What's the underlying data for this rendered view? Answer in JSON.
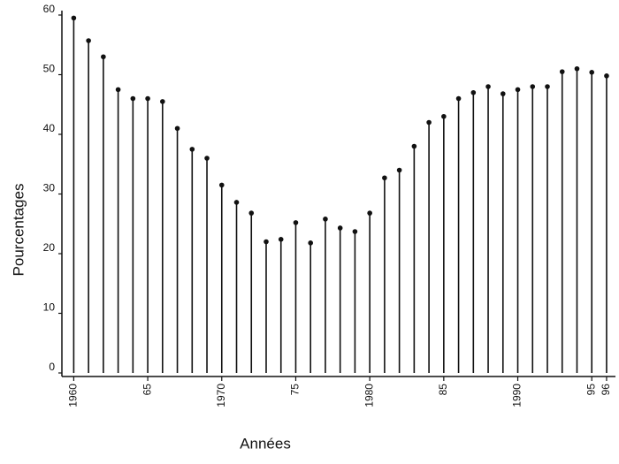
{
  "chart_data": {
    "type": "stem",
    "x_label": "Années",
    "y_label": "Pourcentages",
    "x": [
      1960,
      1961,
      1962,
      1963,
      1964,
      1965,
      1966,
      1967,
      1968,
      1969,
      1970,
      1971,
      1972,
      1973,
      1974,
      1975,
      1976,
      1977,
      1978,
      1979,
      1980,
      1981,
      1982,
      1983,
      1984,
      1985,
      1986,
      1987,
      1988,
      1989,
      1990,
      1991,
      1992,
      1993,
      1994,
      1995,
      1996
    ],
    "values": [
      59.5,
      55.7,
      53,
      47.5,
      46,
      46,
      45.5,
      41,
      37.5,
      36,
      31.5,
      28.6,
      26.8,
      22,
      22.4,
      25.2,
      21.8,
      25.8,
      24.3,
      23.7,
      26.8,
      32.7,
      34,
      38,
      42,
      43,
      46,
      47,
      48,
      46.8,
      47.5,
      48,
      48,
      50.5,
      51,
      50.4,
      49.8
    ],
    "color": "#111111",
    "xlim": [
      1959.2,
      1996.6
    ],
    "xticks": [
      1960,
      {
        "value": 1965,
        "label": "65"
      },
      1970,
      {
        "value": 1975,
        "label": "75"
      },
      1980,
      {
        "value": 1985,
        "label": "85"
      },
      1990,
      {
        "value": 1995,
        "label": "95"
      },
      {
        "value": 1996,
        "label": "96"
      }
    ],
    "ylim": [
      0,
      60
    ],
    "yticks": [
      0,
      10,
      20,
      30,
      40,
      50,
      60
    ]
  }
}
